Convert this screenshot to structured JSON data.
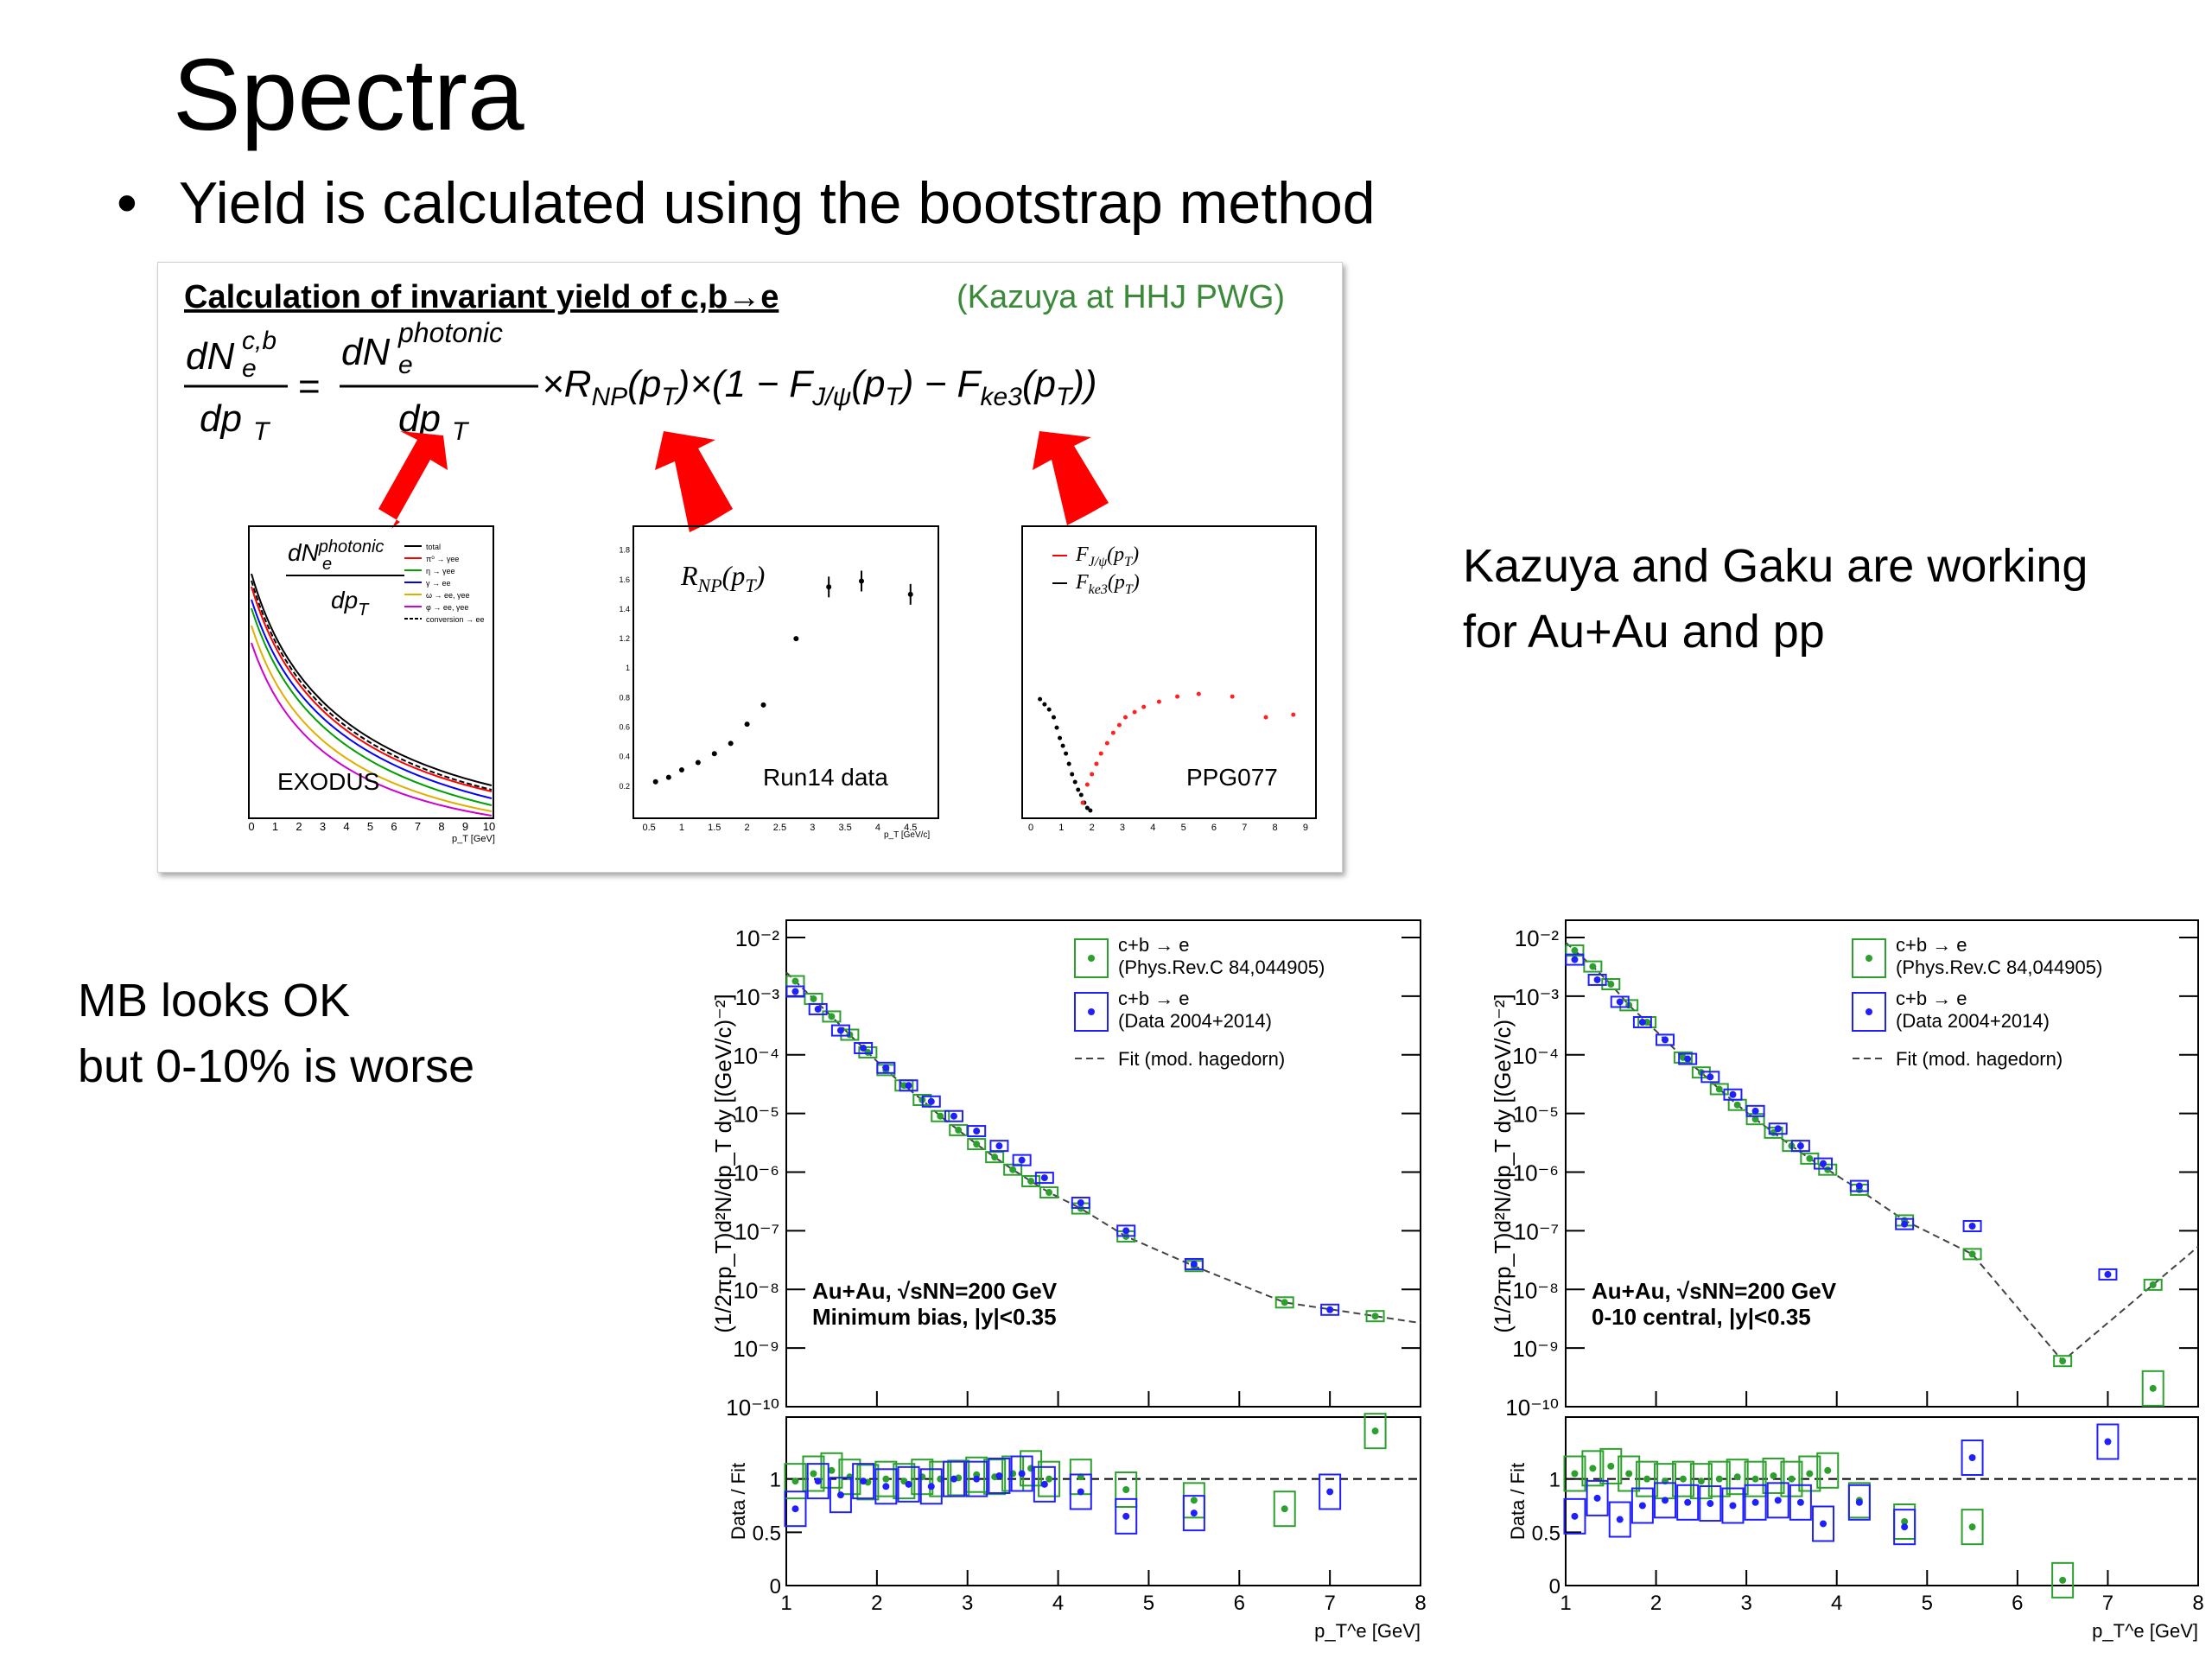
{
  "slide": {
    "title": "Spectra",
    "bullet": "Yield is calculated using the bootstrap method",
    "note_right_line1": "Kazuya and Gaku are working",
    "note_right_line2": "for Au+Au and pp",
    "note_left_line1": "MB looks OK",
    "note_left_line2": "but 0-10% is worse"
  },
  "panel": {
    "heading": "Calculation of invariant yield of c,b→e",
    "credit": "(Kazuya at HHJ PWG)",
    "equation": {
      "lhs_num": "dN",
      "lhs_sup": "c,b",
      "lhs_sub": "e",
      "lhs_den": "dp",
      "den_sub": "T",
      "equals": "=",
      "rhs_num": "dN",
      "rhs_sup": "photonic",
      "rhs_sub": "e",
      "rhs_den": "dp",
      "rest": "×R",
      "rest_sub": "NP",
      "rest2": "(p",
      "rest3": ")×(1 − F",
      "rest3_sub": "J/ψ",
      "rest4": "(p",
      "rest5": ") − F",
      "rest5_sub": "ke3",
      "rest6": "(p",
      "rest7": "))"
    },
    "arrow_color": "#ff0000",
    "thumb1": {
      "label": "EXODUS",
      "formula": "dN",
      "formula_sup": "photonic",
      "formula_sub": "e",
      "formula_den": "dp",
      "legend": [
        "total",
        "π⁰ → γee",
        "η → γee",
        "γ → ee",
        "ω → ee, γee",
        "φ → ee, γee",
        "conversion → ee"
      ],
      "legend_colors": [
        "#000000",
        "#ff0000",
        "#00a000",
        "#0000ff",
        "#e0b000",
        "#d000d0",
        "#000000"
      ],
      "xticks": [
        "0",
        "1",
        "2",
        "3",
        "4",
        "5",
        "6",
        "7",
        "8",
        "9",
        "10"
      ],
      "xlabel": "p_T [GeV]"
    },
    "thumb2": {
      "label": "Run14 data",
      "formula": "R",
      "formula_sub": "NP",
      "formula_rest": "(p",
      "formula_rest_sub": "T",
      "formula_close": ")",
      "xticks": [
        "0.5",
        "1",
        "1.5",
        "2",
        "2.5",
        "3",
        "3.5",
        "4",
        "4.5"
      ],
      "yticks": [
        "0.2",
        "0.4",
        "0.6",
        "0.8",
        "1",
        "1.2",
        "1.4",
        "1.6",
        "1.8"
      ],
      "xlabel": "p_T [GeV/c]",
      "points": [
        [
          0.6,
          0.23
        ],
        [
          0.8,
          0.26
        ],
        [
          1.0,
          0.31
        ],
        [
          1.25,
          0.36
        ],
        [
          1.5,
          0.42
        ],
        [
          1.75,
          0.49
        ],
        [
          2.0,
          0.62
        ],
        [
          2.25,
          0.75
        ],
        [
          2.75,
          1.2
        ],
        [
          3.25,
          1.55
        ],
        [
          3.75,
          1.59
        ],
        [
          4.5,
          1.5
        ]
      ]
    },
    "thumb3": {
      "label": "PPG077",
      "legend": [
        "F",
        "F"
      ],
      "legend_subs": [
        "J/ψ",
        "ke3"
      ],
      "legend_colors": [
        "#ff0000",
        "#000000"
      ],
      "xticks": [
        "0",
        "1",
        "2",
        "3",
        "4",
        "5",
        "6",
        "7",
        "8",
        "9"
      ]
    }
  },
  "chart_data": [
    {
      "type": "scatter",
      "title": "Au+Au, √sNN=200 GeV",
      "subtitle": "Minimum bias, |y|<0.35",
      "ylabel": "(1/2πp_T)d²N/dp_T dy [(GeV/c)⁻²]",
      "ratio_ylabel": "Data / Fit",
      "xlabel": "p_T^e [GeV]",
      "xlim": [
        1,
        8
      ],
      "ylim": [
        1e-10,
        0.01
      ],
      "yscale": "log",
      "ratio_ylim": [
        0,
        1.5
      ],
      "xticks": [
        "1",
        "2",
        "3",
        "4",
        "5",
        "6",
        "7",
        "8"
      ],
      "yticks": [
        "10⁻²",
        "10⁻³",
        "10⁻⁴",
        "10⁻⁵",
        "10⁻⁶",
        "10⁻⁷",
        "10⁻⁸",
        "10⁻⁹",
        "10⁻¹⁰"
      ],
      "ratio_yticks": [
        "0",
        "0.5",
        "1"
      ],
      "legend": [
        "c+b → e",
        "(Phys.Rev.C 84,044905)",
        "c+b → e",
        "(Data 2004+2014)",
        "Fit (mod. hagedorn)"
      ],
      "legend_position": "top-right",
      "series": [
        {
          "name": "c+b → e (Phys.Rev.C 84,044905)",
          "color": "#2ca02c",
          "x": [
            1.1,
            1.3,
            1.5,
            1.7,
            1.9,
            2.1,
            2.3,
            2.5,
            2.7,
            2.9,
            3.1,
            3.3,
            3.5,
            3.7,
            3.9,
            4.25,
            4.75,
            5.5,
            6.5,
            7.5
          ],
          "y": [
            0.0018,
            0.0009,
            0.00045,
            0.00022,
            0.00011,
            5.5e-05,
            3e-05,
            1.7e-05,
            9e-06,
            5.2e-06,
            3e-06,
            1.8e-06,
            1.1e-06,
            7e-07,
            4.5e-07,
            2.4e-07,
            8e-08,
            2.5e-08,
            6e-09,
            3.5e-09
          ],
          "ratio": [
            0.98,
            1.05,
            1.08,
            1.02,
            0.97,
            1.0,
            0.98,
            1.02,
            1.0,
            1.01,
            1.04,
            1.02,
            1.05,
            1.1,
            1.0,
            1.02,
            0.9,
            0.8,
            0.72,
            1.45
          ]
        },
        {
          "name": "c+b → e (Data 2004+2014)",
          "color": "#2020ff",
          "x": [
            1.1,
            1.35,
            1.6,
            1.85,
            2.1,
            2.35,
            2.6,
            2.85,
            3.1,
            3.35,
            3.6,
            3.85,
            4.25,
            4.75,
            5.5,
            7.0
          ],
          "y": [
            0.0012,
            0.0006,
            0.00026,
            0.00013,
            6e-05,
            3e-05,
            1.6e-05,
            9e-06,
            5e-06,
            2.8e-06,
            1.6e-06,
            8e-07,
            3e-07,
            1e-07,
            2.7e-08,
            4.5e-09
          ],
          "ratio": [
            0.72,
            0.98,
            0.85,
            0.98,
            0.93,
            0.95,
            0.93,
            1.0,
            1.0,
            1.03,
            1.05,
            0.95,
            0.88,
            0.65,
            0.68,
            0.88
          ]
        }
      ]
    },
    {
      "type": "scatter",
      "title": "Au+Au, √sNN=200 GeV",
      "subtitle": "0-10 central, |y|<0.35",
      "ylabel": "(1/2πp_T)d²N/dp_T dy [(GeV/c)⁻²]",
      "ratio_ylabel": "Data / Fit",
      "xlabel": "p_T^e [GeV]",
      "xlim": [
        1,
        8
      ],
      "ylim": [
        1e-10,
        0.01
      ],
      "yscale": "log",
      "ratio_ylim": [
        0,
        1.5
      ],
      "xticks": [
        "1",
        "2",
        "3",
        "4",
        "5",
        "6",
        "7",
        "8"
      ],
      "yticks": [
        "10⁻²",
        "10⁻³",
        "10⁻⁴",
        "10⁻⁵",
        "10⁻⁶",
        "10⁻⁷",
        "10⁻⁸",
        "10⁻⁹",
        "10⁻¹⁰"
      ],
      "ratio_yticks": [
        "0",
        "0.5",
        "1"
      ],
      "legend": [
        "c+b → e",
        "(Phys.Rev.C 84,044905)",
        "c+b → e",
        "(Data 2004+2014)",
        "Fit (mod. hagedorn)"
      ],
      "legend_position": "top-right",
      "series": [
        {
          "name": "c+b → e (Phys.Rev.C 84,044905)",
          "color": "#2ca02c",
          "x": [
            1.1,
            1.3,
            1.5,
            1.7,
            1.9,
            2.1,
            2.3,
            2.5,
            2.7,
            2.9,
            3.1,
            3.3,
            3.5,
            3.7,
            3.9,
            4.25,
            4.75,
            5.5,
            6.5,
            7.5
          ],
          "y": [
            0.006,
            0.0032,
            0.0016,
            0.0007,
            0.00036,
            0.00018,
            9e-05,
            5e-05,
            2.6e-05,
            1.4e-05,
            8e-06,
            4.7e-06,
            2.8e-06,
            1.7e-06,
            1.1e-06,
            5e-07,
            1.5e-07,
            4e-08,
            6e-10,
            1.2e-08
          ],
          "ratio": [
            1.05,
            1.1,
            1.12,
            1.05,
            1.0,
            0.98,
            1.0,
            0.98,
            1.0,
            1.02,
            1.0,
            1.03,
            1.0,
            1.05,
            1.08,
            0.8,
            0.6,
            0.55,
            0.05,
            1.85
          ]
        },
        {
          "name": "c+b → e (Data 2004+2014)",
          "color": "#2020ff",
          "x": [
            1.1,
            1.35,
            1.6,
            1.85,
            2.1,
            2.35,
            2.6,
            2.85,
            3.1,
            3.35,
            3.6,
            3.85,
            4.25,
            4.75,
            5.5,
            7.0
          ],
          "y": [
            0.0042,
            0.0019,
            0.0008,
            0.00036,
            0.00018,
            8.5e-05,
            4.2e-05,
            2.1e-05,
            1.1e-05,
            5.5e-06,
            2.8e-06,
            1.4e-06,
            5.8e-07,
            1.3e-07,
            1.2e-07,
            1.8e-08
          ],
          "ratio": [
            0.65,
            0.82,
            0.62,
            0.75,
            0.8,
            0.78,
            0.77,
            0.75,
            0.78,
            0.8,
            0.78,
            0.58,
            0.78,
            0.55,
            1.2,
            1.35
          ]
        }
      ]
    }
  ]
}
